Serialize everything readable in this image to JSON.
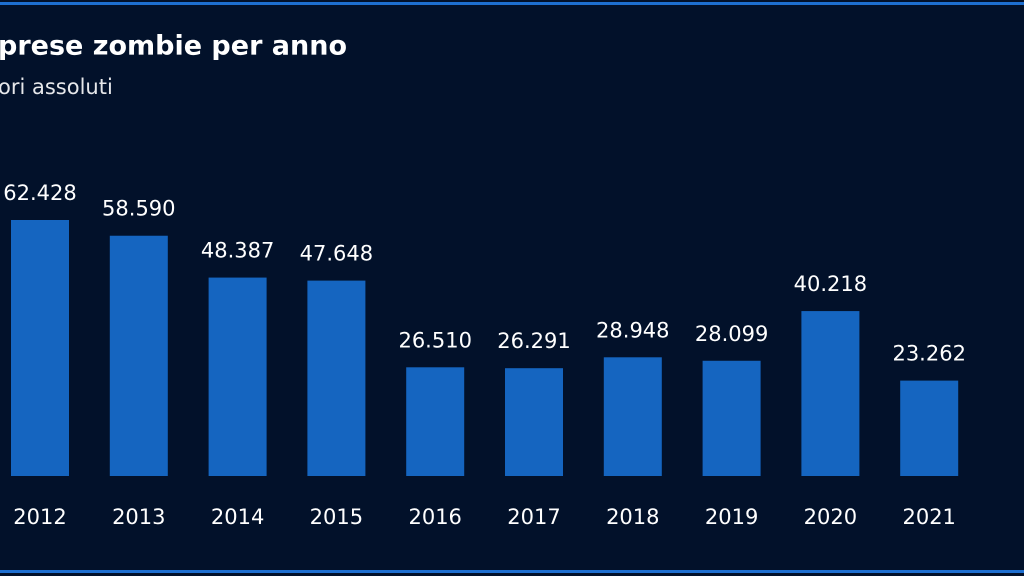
{
  "chart_data": {
    "type": "bar",
    "title": "prese zombie per anno",
    "subtitle": "ori assoluti",
    "categories": [
      "2012",
      "2013",
      "2014",
      "2015",
      "2016",
      "2017",
      "2018",
      "2019",
      "2020",
      "2021"
    ],
    "values": [
      62428,
      58590,
      48387,
      47648,
      26510,
      26291,
      28948,
      28099,
      40218,
      23262
    ],
    "value_labels": [
      "62.428",
      "58.590",
      "48.387",
      "47.648",
      "26.510",
      "26.291",
      "28.948",
      "28.099",
      "40.218",
      "23.262"
    ],
    "color": "#1565c0"
  }
}
